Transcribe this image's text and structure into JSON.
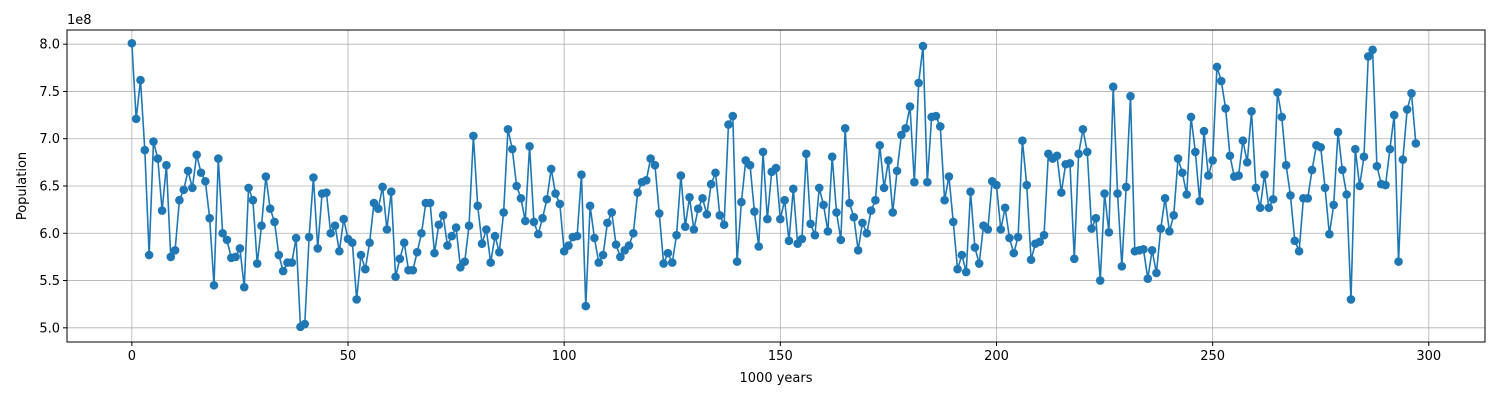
{
  "chart_data": {
    "type": "line",
    "xlabel": "1000 years",
    "ylabel": "Population",
    "offset_label": "1e8",
    "xlim": [
      -15,
      313
    ],
    "ylim": [
      4.85,
      8.15
    ],
    "x_ticks": [
      0,
      50,
      100,
      150,
      200,
      250,
      300
    ],
    "y_ticks": [
      5.0,
      5.5,
      6.0,
      6.5,
      7.0,
      7.5,
      8.0
    ],
    "y_tick_labels": [
      "5.0",
      "5.5",
      "6.0",
      "6.5",
      "7.0",
      "7.5",
      "8.0"
    ],
    "grid": true,
    "marker": "circle",
    "line_color": "#1f77b4",
    "series": [
      {
        "values": [
          8.01,
          7.21,
          7.62,
          6.88,
          5.77,
          6.97,
          6.79,
          6.24,
          6.72,
          5.75,
          5.82,
          6.35,
          6.46,
          6.66,
          6.48,
          6.83,
          6.64,
          6.55,
          6.16,
          5.45,
          6.79,
          6.0,
          5.93,
          5.74,
          5.75,
          5.84,
          5.43,
          6.48,
          6.35,
          5.68,
          6.08,
          6.6,
          6.26,
          6.12,
          5.77,
          5.6,
          5.69,
          5.69,
          5.95,
          5.01,
          5.04,
          5.96,
          6.59,
          5.84,
          6.42,
          6.43,
          6.0,
          6.08,
          5.81,
          6.15,
          5.94,
          5.9,
          5.3,
          5.77,
          5.62,
          5.9,
          6.32,
          6.26,
          6.49,
          6.04,
          6.44,
          5.54,
          5.73,
          5.9,
          5.61,
          5.61,
          5.8,
          6.0,
          6.32,
          6.32,
          5.79,
          6.09,
          6.19,
          5.87,
          5.97,
          6.06,
          5.64,
          5.7,
          6.08,
          7.03,
          6.29,
          5.89,
          6.04,
          5.69,
          5.97,
          5.8,
          6.22,
          7.1,
          6.89,
          6.5,
          6.37,
          6.13,
          6.92,
          6.12,
          5.99,
          6.16,
          6.36,
          6.68,
          6.42,
          6.31,
          5.81,
          5.87,
          5.96,
          5.97,
          6.62,
          5.23,
          6.29,
          5.95,
          5.69,
          5.77,
          6.11,
          6.22,
          5.88,
          5.75,
          5.82,
          5.87,
          6.0,
          6.43,
          6.54,
          6.56,
          6.79,
          6.72,
          6.21,
          5.68,
          5.79,
          5.69,
          5.98,
          6.61,
          6.07,
          6.38,
          6.04,
          6.26,
          6.37,
          6.2,
          6.52,
          6.64,
          6.19,
          6.09,
          7.15,
          7.24,
          5.7,
          6.33,
          6.77,
          6.72,
          6.23,
          5.86,
          6.86,
          6.15,
          6.65,
          6.69,
          6.15,
          6.35,
          5.92,
          6.47,
          5.89,
          5.94,
          6.84,
          6.1,
          5.98,
          6.48,
          6.3,
          6.02,
          6.81,
          6.22,
          5.93,
          7.11,
          6.32,
          6.17,
          5.82,
          6.11,
          6.0,
          6.24,
          6.35,
          6.93,
          6.48,
          6.77,
          6.22,
          6.66,
          7.04,
          7.11,
          7.34,
          6.54,
          7.59,
          7.98,
          6.54,
          7.23,
          7.24,
          7.13,
          6.35,
          6.6,
          6.12,
          5.62,
          5.77,
          5.59,
          6.44,
          5.85,
          5.68,
          6.08,
          6.04,
          6.55,
          6.51,
          6.04,
          6.27,
          5.95,
          5.79,
          5.96,
          6.98,
          6.51,
          5.72,
          5.89,
          5.91,
          5.98,
          6.84,
          6.79,
          6.82,
          6.43,
          6.73,
          6.74,
          5.73,
          6.84,
          7.1,
          6.86,
          6.05,
          6.16,
          5.5,
          6.42,
          6.01,
          7.55,
          6.42,
          5.65,
          6.49,
          7.45,
          5.81,
          5.82,
          5.83,
          5.52,
          5.82,
          5.58,
          6.05,
          6.37,
          6.02,
          6.19,
          6.79,
          6.64,
          6.41,
          7.23,
          6.86,
          6.34,
          7.08,
          6.61,
          6.77,
          7.76,
          7.61,
          7.32,
          6.82,
          6.6,
          6.61,
          6.98,
          6.75,
          7.29,
          6.48,
          6.27,
          6.62,
          6.27,
          6.36,
          7.49,
          7.23,
          6.72,
          6.4,
          5.92,
          5.81,
          6.37,
          6.37,
          6.67,
          6.93,
          6.91,
          6.48,
          5.99,
          6.3,
          7.07,
          6.67,
          6.41,
          5.3,
          6.89,
          6.5,
          6.81,
          7.87,
          7.94,
          6.71,
          6.52,
          6.51,
          6.89,
          7.25,
          5.7,
          6.78,
          7.31,
          7.48,
          6.95
        ]
      }
    ]
  }
}
